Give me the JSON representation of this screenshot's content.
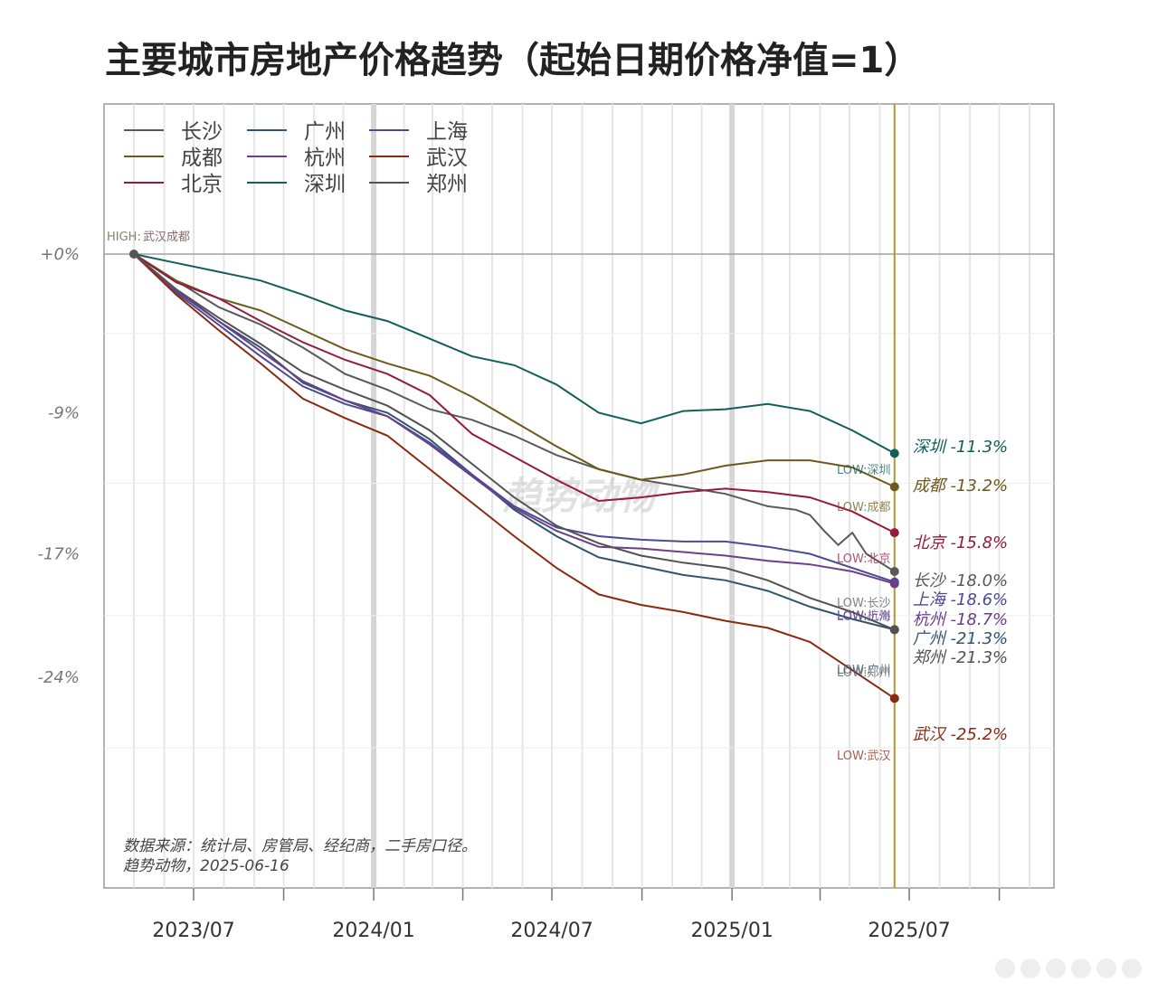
{
  "chart_data": {
    "type": "line",
    "title": "主要城市房地产价格趋势（起始日期价格净值=1）",
    "xlabel": "",
    "ylabel": "",
    "x_ticks": [
      "2023/07",
      "2024/01",
      "2024/07",
      "2025/01",
      "2025/07"
    ],
    "y_ticks": [
      "+0%",
      "-9%",
      "-17%",
      "-24%"
    ],
    "ylim": [
      -32,
      8.5
    ],
    "grid": true,
    "legend": "top-left",
    "start_date": "2023-05-01",
    "end_date": "2025-06-16",
    "high_label": "HIGH:",
    "high_label_cities": "武汉成都",
    "watermark": "趋势动物",
    "source_note": [
      "数据来源：统计局、房管局、经纪商，二手房口径。",
      "趋势动物，2025-06-16"
    ],
    "series": [
      {
        "name": "长沙",
        "color": "#595959",
        "final_label": "长沙 -18.0%",
        "low_label": "LOW:长沙",
        "values": [
          [
            0,
            0
          ],
          [
            12,
            -1.5
          ],
          [
            24,
            -3.0
          ],
          [
            36,
            -4.0
          ],
          [
            48,
            -5.3
          ],
          [
            60,
            -6.8
          ],
          [
            72,
            -7.7
          ],
          [
            84,
            -8.8
          ],
          [
            96,
            -9.4
          ],
          [
            108,
            -10.3
          ],
          [
            120,
            -11.4
          ],
          [
            132,
            -12.2
          ],
          [
            144,
            -12.8
          ],
          [
            156,
            -13.2
          ],
          [
            168,
            -13.6
          ],
          [
            180,
            -14.3
          ],
          [
            188,
            -14.5
          ],
          [
            192,
            -14.8
          ],
          [
            196,
            -15.7
          ],
          [
            200,
            -16.5
          ],
          [
            204,
            -15.8
          ],
          [
            208,
            -17.0
          ],
          [
            212,
            -17.5
          ],
          [
            216,
            -18.0
          ]
        ]
      },
      {
        "name": "广州",
        "color": "#2f5570",
        "final_label": "广州 -21.3%",
        "low_label": "LOW:广州",
        "values": [
          [
            0,
            0
          ],
          [
            12,
            -2.0
          ],
          [
            24,
            -3.8
          ],
          [
            36,
            -5.3
          ],
          [
            48,
            -7.3
          ],
          [
            60,
            -8.3
          ],
          [
            72,
            -9.0
          ],
          [
            84,
            -10.5
          ],
          [
            96,
            -12.5
          ],
          [
            108,
            -14.5
          ],
          [
            120,
            -16.0
          ],
          [
            132,
            -17.2
          ],
          [
            144,
            -17.7
          ],
          [
            156,
            -18.2
          ],
          [
            168,
            -18.5
          ],
          [
            180,
            -19.1
          ],
          [
            192,
            -20.0
          ],
          [
            204,
            -20.7
          ],
          [
            216,
            -21.3
          ]
        ]
      },
      {
        "name": "上海",
        "color": "#4a4a95",
        "final_label": "上海 -18.6%",
        "low_label": "LOW:上海",
        "values": [
          [
            0,
            0
          ],
          [
            12,
            -2.2
          ],
          [
            24,
            -4.0
          ],
          [
            36,
            -5.8
          ],
          [
            48,
            -7.5
          ],
          [
            60,
            -8.5
          ],
          [
            72,
            -9.2
          ],
          [
            84,
            -10.7
          ],
          [
            96,
            -12.5
          ],
          [
            108,
            -14.3
          ],
          [
            120,
            -15.5
          ],
          [
            132,
            -16.0
          ],
          [
            144,
            -16.2
          ],
          [
            156,
            -16.3
          ],
          [
            168,
            -16.3
          ],
          [
            180,
            -16.6
          ],
          [
            192,
            -17.0
          ],
          [
            204,
            -17.8
          ],
          [
            216,
            -18.6
          ]
        ]
      },
      {
        "name": "成都",
        "color": "#6b5a1a",
        "final_label": "成都 -13.2%",
        "low_label": "LOW:成都",
        "values": [
          [
            0,
            0
          ],
          [
            12,
            -1.5
          ],
          [
            24,
            -2.5
          ],
          [
            36,
            -3.2
          ],
          [
            48,
            -4.3
          ],
          [
            60,
            -5.4
          ],
          [
            72,
            -6.2
          ],
          [
            84,
            -6.9
          ],
          [
            96,
            -8.1
          ],
          [
            108,
            -9.5
          ],
          [
            120,
            -10.9
          ],
          [
            132,
            -12.2
          ],
          [
            144,
            -12.8
          ],
          [
            156,
            -12.5
          ],
          [
            168,
            -12.0
          ],
          [
            180,
            -11.7
          ],
          [
            192,
            -11.7
          ],
          [
            204,
            -12.1
          ],
          [
            216,
            -13.2
          ]
        ]
      },
      {
        "name": "杭州",
        "color": "#6c3f8a",
        "final_label": "杭州 -18.7%",
        "low_label": "LOW:杭州",
        "values": [
          [
            0,
            0
          ],
          [
            12,
            -2.1
          ],
          [
            24,
            -3.8
          ],
          [
            36,
            -5.5
          ],
          [
            48,
            -7.2
          ],
          [
            60,
            -8.3
          ],
          [
            72,
            -9.2
          ],
          [
            84,
            -10.8
          ],
          [
            96,
            -12.6
          ],
          [
            108,
            -14.4
          ],
          [
            120,
            -15.7
          ],
          [
            132,
            -16.6
          ],
          [
            144,
            -16.7
          ],
          [
            156,
            -16.9
          ],
          [
            168,
            -17.1
          ],
          [
            180,
            -17.4
          ],
          [
            192,
            -17.6
          ],
          [
            204,
            -18.0
          ],
          [
            216,
            -18.7
          ]
        ]
      },
      {
        "name": "武汉",
        "color": "#8a2a12",
        "final_label": "武汉 -25.2%",
        "low_label": "LOW:武汉",
        "values": [
          [
            0,
            0
          ],
          [
            12,
            -2.3
          ],
          [
            24,
            -4.3
          ],
          [
            36,
            -6.2
          ],
          [
            48,
            -8.2
          ],
          [
            60,
            -9.3
          ],
          [
            72,
            -10.3
          ],
          [
            84,
            -12.2
          ],
          [
            96,
            -14.1
          ],
          [
            108,
            -16.0
          ],
          [
            120,
            -17.8
          ],
          [
            132,
            -19.3
          ],
          [
            144,
            -19.9
          ],
          [
            156,
            -20.3
          ],
          [
            168,
            -20.8
          ],
          [
            180,
            -21.2
          ],
          [
            192,
            -22.0
          ],
          [
            204,
            -23.6
          ],
          [
            216,
            -25.2
          ]
        ]
      },
      {
        "name": "北京",
        "color": "#951a3f",
        "final_label": "北京 -15.8%",
        "low_label": "LOW:北京",
        "values": [
          [
            0,
            0
          ],
          [
            12,
            -1.6
          ],
          [
            24,
            -2.5
          ],
          [
            36,
            -3.8
          ],
          [
            48,
            -5.0
          ],
          [
            60,
            -6.0
          ],
          [
            72,
            -6.8
          ],
          [
            84,
            -8.0
          ],
          [
            96,
            -10.2
          ],
          [
            108,
            -11.5
          ],
          [
            120,
            -12.8
          ],
          [
            132,
            -14.0
          ],
          [
            144,
            -13.8
          ],
          [
            156,
            -13.5
          ],
          [
            168,
            -13.3
          ],
          [
            180,
            -13.5
          ],
          [
            192,
            -13.8
          ],
          [
            204,
            -14.6
          ],
          [
            216,
            -15.8
          ]
        ]
      },
      {
        "name": "深圳",
        "color": "#105f5a",
        "final_label": "深圳 -11.3%",
        "low_label": "LOW:深圳",
        "values": [
          [
            0,
            0
          ],
          [
            12,
            -0.5
          ],
          [
            24,
            -1.0
          ],
          [
            36,
            -1.5
          ],
          [
            48,
            -2.3
          ],
          [
            60,
            -3.2
          ],
          [
            72,
            -3.8
          ],
          [
            84,
            -4.8
          ],
          [
            96,
            -5.8
          ],
          [
            108,
            -6.3
          ],
          [
            120,
            -7.4
          ],
          [
            132,
            -9.0
          ],
          [
            144,
            -9.6
          ],
          [
            156,
            -8.9
          ],
          [
            168,
            -8.8
          ],
          [
            180,
            -8.5
          ],
          [
            192,
            -8.9
          ],
          [
            204,
            -10.0
          ],
          [
            216,
            -11.3
          ]
        ]
      },
      {
        "name": "郑州",
        "color": "#525252",
        "final_label": "郑州 -21.3%",
        "low_label": "LOW:郑州",
        "values": [
          [
            0,
            0
          ],
          [
            12,
            -2.0
          ],
          [
            24,
            -3.6
          ],
          [
            36,
            -5.1
          ],
          [
            48,
            -6.7
          ],
          [
            60,
            -7.7
          ],
          [
            72,
            -8.6
          ],
          [
            84,
            -10.0
          ],
          [
            96,
            -11.9
          ],
          [
            108,
            -13.8
          ],
          [
            120,
            -15.4
          ],
          [
            132,
            -16.4
          ],
          [
            144,
            -17.1
          ],
          [
            156,
            -17.5
          ],
          [
            168,
            -17.8
          ],
          [
            180,
            -18.5
          ],
          [
            192,
            -19.5
          ],
          [
            204,
            -20.3
          ],
          [
            216,
            -21.3
          ]
        ]
      }
    ]
  }
}
